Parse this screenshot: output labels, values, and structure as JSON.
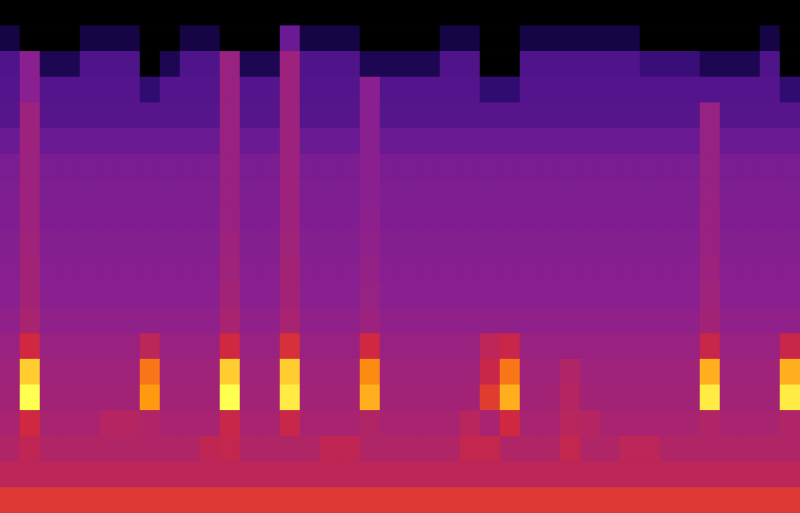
{
  "chart_data": {
    "type": "heatmap",
    "zlim": [
      0,
      100
    ],
    "tick_labels": false,
    "grid": false,
    "cells": [
      [
        0,
        0,
        0,
        0,
        0,
        0,
        0,
        0,
        0,
        0,
        0,
        0,
        0,
        0,
        0,
        0,
        0,
        0,
        0,
        0,
        0,
        0,
        0,
        0,
        0,
        0,
        0,
        0,
        0,
        0,
        0,
        0,
        0,
        0,
        0,
        0,
        0,
        0,
        0,
        0
      ],
      [
        12,
        0,
        0,
        0,
        12,
        12,
        12,
        0,
        0,
        12,
        12,
        0,
        0,
        0,
        40,
        12,
        12,
        12,
        0,
        0,
        0,
        0,
        12,
        12,
        0,
        0,
        12,
        12,
        12,
        12,
        12,
        12,
        0,
        0,
        0,
        0,
        0,
        0,
        12,
        0
      ],
      [
        32,
        50,
        15,
        15,
        32,
        32,
        32,
        0,
        15,
        32,
        32,
        55,
        15,
        15,
        56,
        32,
        32,
        32,
        15,
        15,
        15,
        15,
        32,
        32,
        0,
        0,
        32,
        32,
        32,
        32,
        32,
        32,
        25,
        25,
        25,
        15,
        15,
        15,
        32,
        0
      ],
      [
        33,
        50,
        33,
        33,
        33,
        33,
        33,
        22,
        33,
        33,
        33,
        55,
        33,
        33,
        56,
        33,
        33,
        33,
        50,
        33,
        33,
        33,
        33,
        33,
        22,
        22,
        33,
        33,
        33,
        33,
        33,
        33,
        33,
        33,
        33,
        33,
        33,
        33,
        33,
        22
      ],
      [
        34,
        56,
        34,
        34,
        34,
        34,
        34,
        34,
        34,
        34,
        34,
        55,
        34,
        34,
        56,
        34,
        34,
        34,
        50,
        34,
        34,
        34,
        34,
        34,
        34,
        34,
        34,
        34,
        34,
        34,
        34,
        34,
        34,
        34,
        34,
        54,
        34,
        34,
        34,
        34
      ],
      [
        40,
        56,
        40,
        40,
        40,
        40,
        40,
        40,
        40,
        40,
        40,
        55,
        40,
        40,
        56,
        40,
        40,
        40,
        50,
        40,
        40,
        40,
        40,
        40,
        40,
        40,
        40,
        40,
        40,
        40,
        40,
        40,
        40,
        40,
        40,
        54,
        40,
        40,
        40,
        40
      ],
      [
        45,
        56,
        45,
        45,
        45,
        45,
        45,
        45,
        45,
        45,
        45,
        55,
        45,
        45,
        56,
        45,
        45,
        45,
        50,
        45,
        45,
        45,
        45,
        45,
        45,
        45,
        45,
        45,
        45,
        45,
        45,
        45,
        45,
        45,
        45,
        54,
        45,
        45,
        45,
        45
      ],
      [
        46,
        56,
        46,
        46,
        46,
        46,
        46,
        46,
        46,
        46,
        46,
        55,
        46,
        46,
        56,
        46,
        46,
        46,
        50,
        46,
        46,
        46,
        46,
        46,
        46,
        46,
        46,
        46,
        46,
        46,
        46,
        46,
        46,
        46,
        46,
        54,
        46,
        46,
        46,
        46
      ],
      [
        47,
        56,
        47,
        47,
        47,
        47,
        47,
        47,
        47,
        47,
        47,
        55,
        47,
        47,
        56,
        47,
        47,
        47,
        51,
        47,
        47,
        47,
        47,
        47,
        47,
        47,
        47,
        47,
        47,
        47,
        47,
        47,
        47,
        47,
        47,
        55,
        47,
        47,
        47,
        47
      ],
      [
        48,
        57,
        48,
        48,
        48,
        48,
        48,
        48,
        48,
        48,
        48,
        56,
        48,
        48,
        57,
        48,
        48,
        48,
        52,
        48,
        48,
        48,
        48,
        48,
        48,
        48,
        48,
        48,
        48,
        48,
        48,
        48,
        48,
        48,
        48,
        55,
        48,
        48,
        48,
        48
      ],
      [
        49,
        58,
        49,
        49,
        49,
        49,
        49,
        49,
        49,
        49,
        49,
        57,
        49,
        49,
        58,
        49,
        49,
        49,
        53,
        49,
        49,
        49,
        49,
        49,
        49,
        49,
        49,
        49,
        49,
        49,
        49,
        49,
        49,
        49,
        49,
        56,
        49,
        49,
        49,
        49
      ],
      [
        50,
        58,
        50,
        50,
        50,
        50,
        50,
        50,
        50,
        50,
        50,
        58,
        50,
        50,
        58,
        50,
        50,
        50,
        54,
        50,
        50,
        50,
        50,
        50,
        50,
        50,
        50,
        50,
        50,
        50,
        50,
        50,
        50,
        50,
        50,
        57,
        50,
        50,
        50,
        50
      ],
      [
        52,
        60,
        52,
        52,
        52,
        52,
        52,
        52,
        52,
        52,
        52,
        60,
        52,
        52,
        60,
        52,
        52,
        52,
        56,
        52,
        52,
        52,
        52,
        52,
        52,
        52,
        52,
        52,
        52,
        52,
        52,
        52,
        52,
        52,
        52,
        58,
        52,
        52,
        52,
        52
      ],
      [
        55,
        70,
        55,
        55,
        55,
        55,
        55,
        65,
        55,
        55,
        55,
        70,
        55,
        55,
        72,
        55,
        55,
        55,
        70,
        55,
        55,
        55,
        55,
        55,
        65,
        68,
        55,
        55,
        55,
        55,
        55,
        55,
        55,
        55,
        55,
        68,
        55,
        55,
        55,
        68
      ],
      [
        57,
        95,
        57,
        57,
        57,
        57,
        57,
        85,
        57,
        57,
        57,
        95,
        57,
        57,
        95,
        57,
        57,
        57,
        88,
        57,
        57,
        57,
        57,
        57,
        68,
        85,
        57,
        57,
        62,
        57,
        57,
        57,
        57,
        57,
        57,
        92,
        57,
        57,
        57,
        92
      ],
      [
        58,
        100,
        58,
        58,
        58,
        58,
        58,
        90,
        58,
        58,
        58,
        100,
        58,
        58,
        98,
        58,
        58,
        58,
        92,
        58,
        58,
        58,
        58,
        58,
        75,
        92,
        58,
        58,
        63,
        58,
        58,
        58,
        58,
        58,
        58,
        98,
        58,
        58,
        58,
        98
      ],
      [
        60,
        70,
        60,
        60,
        60,
        63,
        63,
        62,
        60,
        60,
        60,
        68,
        60,
        60,
        68,
        60,
        60,
        60,
        62,
        60,
        60,
        60,
        60,
        64,
        60,
        70,
        60,
        60,
        64,
        63,
        60,
        60,
        60,
        60,
        60,
        62,
        60,
        60,
        60,
        62
      ],
      [
        62,
        66,
        62,
        62,
        62,
        62,
        62,
        62,
        62,
        62,
        66,
        67,
        62,
        62,
        62,
        62,
        66,
        66,
        62,
        62,
        62,
        62,
        62,
        67,
        67,
        62,
        62,
        62,
        67,
        62,
        62,
        65,
        65,
        62,
        62,
        62,
        62,
        62,
        62,
        62
      ],
      [
        65,
        65,
        65,
        65,
        65,
        65,
        65,
        65,
        65,
        65,
        65,
        65,
        65,
        65,
        65,
        65,
        65,
        65,
        65,
        65,
        65,
        65,
        65,
        65,
        65,
        65,
        65,
        65,
        65,
        65,
        65,
        65,
        65,
        65,
        65,
        65,
        65,
        65,
        65,
        65
      ],
      [
        74,
        74,
        74,
        74,
        74,
        74,
        74,
        74,
        74,
        74,
        74,
        74,
        74,
        74,
        74,
        74,
        74,
        74,
        74,
        74,
        74,
        74,
        74,
        74,
        74,
        74,
        74,
        74,
        74,
        74,
        74,
        74,
        74,
        74,
        74,
        74,
        74,
        74,
        74,
        74
      ]
    ]
  }
}
